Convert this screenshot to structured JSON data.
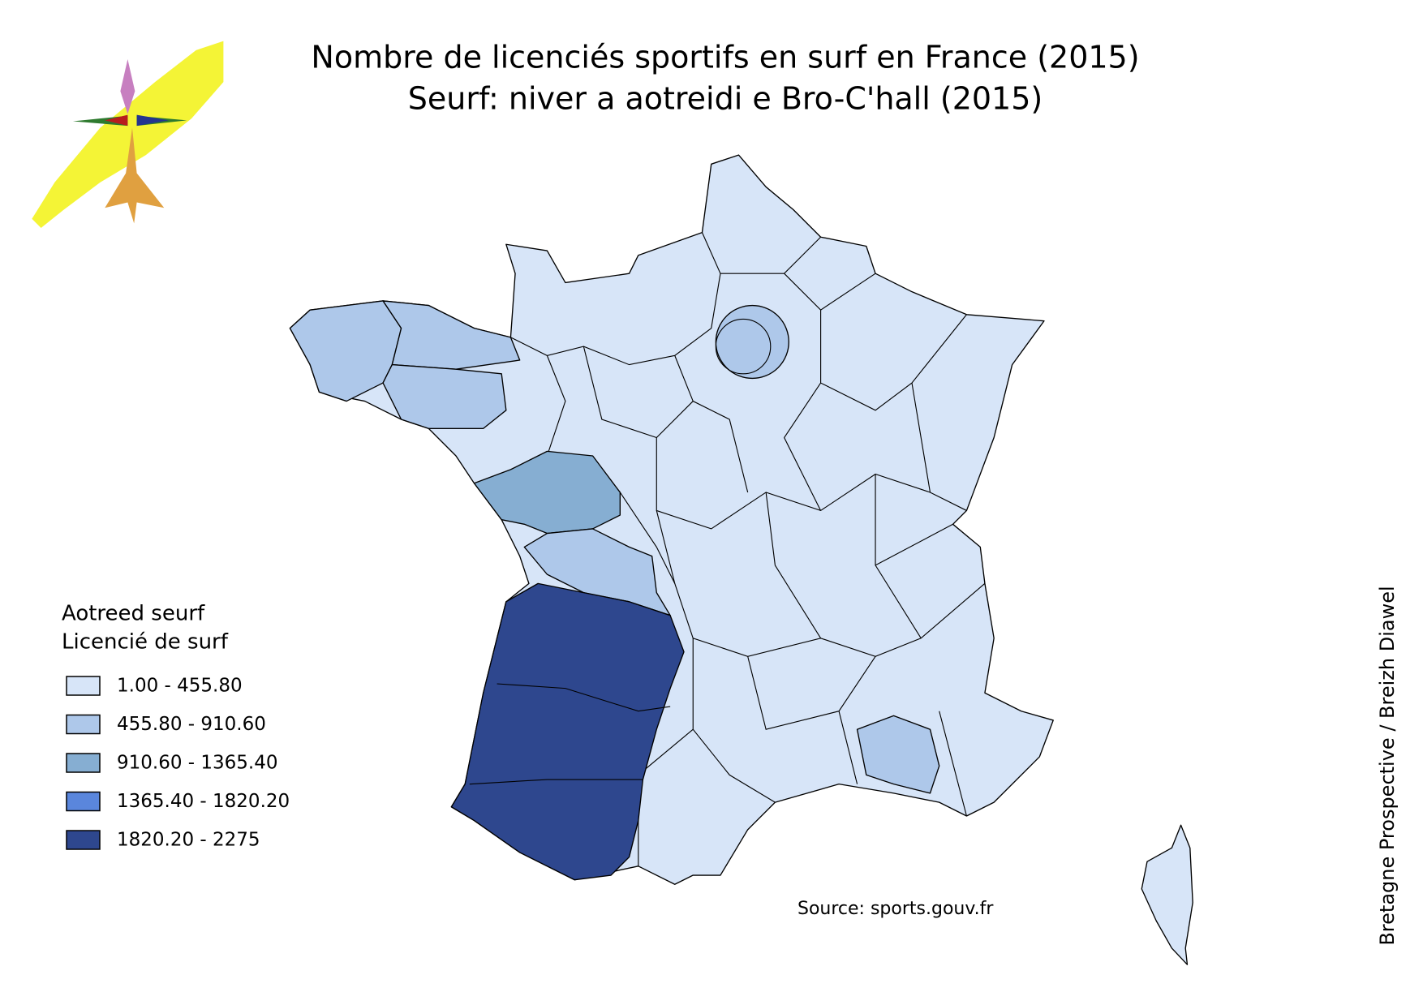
{
  "header": {
    "title_lines": [
      "Nombre de licenciés sportifs en surf en France (2015)",
      "Seurf: niver a aotreidi e Bro-C'hall (2015)"
    ]
  },
  "legend": {
    "title_lines": [
      "Aotreed seurf",
      "Licencié de surf"
    ],
    "items": [
      {
        "label": "1.00 - 455.80",
        "color": "#d7e5f8"
      },
      {
        "label": "455.80 - 910.60",
        "color": "#aec8ea"
      },
      {
        "label": "910.60 - 1365.40",
        "color": "#86aed2"
      },
      {
        "label": "1365.40 - 1820.20",
        "color": "#5a86dc"
      },
      {
        "label": "1820.20 - 2275",
        "color": "#2e478e"
      }
    ]
  },
  "source": "Source: sports.gouv.fr",
  "credit": "Bretagne Prospective / Breizh Diawel"
}
